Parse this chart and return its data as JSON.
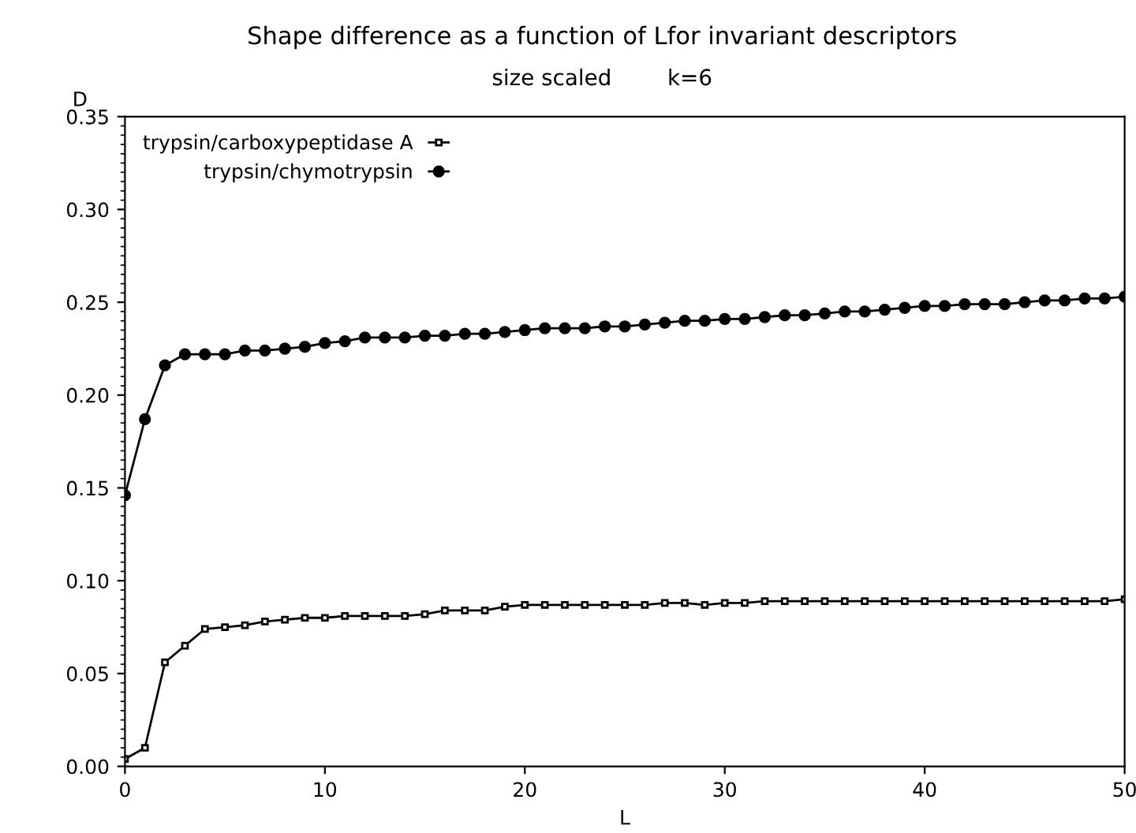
{
  "chart_data": {
    "type": "line",
    "title": "Shape difference as a function of Lfor invariant descriptors",
    "subtitle": "size scaled        k=6",
    "xlabel": "L",
    "ylabel": "D",
    "x": [
      0,
      1,
      2,
      3,
      4,
      5,
      6,
      7,
      8,
      9,
      10,
      11,
      12,
      13,
      14,
      15,
      16,
      17,
      18,
      19,
      20,
      21,
      22,
      23,
      24,
      25,
      26,
      27,
      28,
      29,
      30,
      31,
      32,
      33,
      34,
      35,
      36,
      37,
      38,
      39,
      40,
      41,
      42,
      43,
      44,
      45,
      46,
      47,
      48,
      49,
      50
    ],
    "series": [
      {
        "name": "trypsin/carboxypeptidase A",
        "color": "#000000",
        "marker": "square",
        "values": [
          0.004,
          0.01,
          0.056,
          0.065,
          0.074,
          0.075,
          0.076,
          0.078,
          0.079,
          0.08,
          0.08,
          0.081,
          0.081,
          0.081,
          0.081,
          0.082,
          0.084,
          0.084,
          0.084,
          0.086,
          0.087,
          0.087,
          0.087,
          0.087,
          0.087,
          0.087,
          0.087,
          0.088,
          0.088,
          0.087,
          0.088,
          0.088,
          0.089,
          0.089,
          0.089,
          0.089,
          0.089,
          0.089,
          0.089,
          0.089,
          0.089,
          0.089,
          0.089,
          0.089,
          0.089,
          0.089,
          0.089,
          0.089,
          0.089,
          0.089,
          0.09
        ]
      },
      {
        "name": "trypsin/chymotrypsin",
        "color": "#000000",
        "marker": "circle",
        "values": [
          0.146,
          0.187,
          0.216,
          0.222,
          0.222,
          0.222,
          0.224,
          0.224,
          0.225,
          0.226,
          0.228,
          0.229,
          0.231,
          0.231,
          0.231,
          0.232,
          0.232,
          0.233,
          0.233,
          0.234,
          0.235,
          0.236,
          0.236,
          0.236,
          0.237,
          0.237,
          0.238,
          0.239,
          0.24,
          0.24,
          0.241,
          0.241,
          0.242,
          0.243,
          0.243,
          0.244,
          0.245,
          0.245,
          0.246,
          0.247,
          0.248,
          0.248,
          0.249,
          0.249,
          0.249,
          0.25,
          0.251,
          0.251,
          0.252,
          0.252,
          0.253
        ]
      }
    ],
    "xlim": [
      0,
      50
    ],
    "xticks": [
      0,
      10,
      20,
      30,
      40,
      50
    ],
    "ylim": [
      0,
      0.35
    ],
    "yticks": [
      {
        "value": 0,
        "label": "0.00"
      },
      {
        "value": 0.05,
        "label": "0.05"
      },
      {
        "value": 0.1,
        "label": "0.10"
      },
      {
        "value": 0.15,
        "label": "0.15"
      },
      {
        "value": 0.2,
        "label": "0.20"
      },
      {
        "value": 0.25,
        "label": "0.25"
      },
      {
        "value": 0.3,
        "label": "0.30"
      },
      {
        "value": 0.35,
        "label": "0.35"
      }
    ],
    "grid": false,
    "legend": "top left",
    "line_style": "solid"
  }
}
